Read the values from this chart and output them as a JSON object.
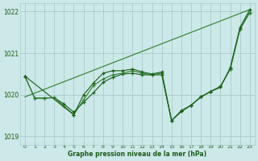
{
  "bg_color": "#cce8e8",
  "grid_color": "#aacccc",
  "line_color_dark": "#1a5c1a",
  "line_color_mid": "#2e7d2e",
  "ylim": [
    1018.8,
    1022.2
  ],
  "yticks": [
    1019,
    1020,
    1021,
    1022
  ],
  "xlim": [
    -0.5,
    23.5
  ],
  "xlabel_label": "Graphe pression niveau de la mer (hPa)",
  "series": [
    {
      "x": [
        0,
        23
      ],
      "y": [
        1019.95,
        1022.05
      ],
      "marker": false,
      "lw": 0.9
    },
    {
      "x": [
        0,
        1,
        2,
        3,
        4,
        5,
        6,
        7,
        8,
        9,
        10,
        11,
        12,
        13,
        14,
        15,
        16,
        17,
        18,
        19,
        20,
        21,
        22,
        23
      ],
      "y": [
        1020.45,
        1019.92,
        1019.92,
        1019.93,
        1019.78,
        1019.58,
        1019.82,
        1020.05,
        1020.3,
        1020.42,
        1020.5,
        1020.52,
        1020.48,
        1020.48,
        1020.48,
        1019.38,
        1019.62,
        1019.75,
        1019.95,
        1020.08,
        1020.2,
        1020.62,
        1021.58,
        1021.98
      ],
      "marker": true,
      "lw": 0.9
    },
    {
      "x": [
        0,
        1,
        2,
        3,
        4,
        5,
        6,
        7,
        8,
        9,
        10,
        11,
        12,
        13,
        14,
        15,
        16,
        17,
        18,
        19,
        20,
        21,
        22,
        23
      ],
      "y": [
        1020.45,
        1019.92,
        1019.92,
        1019.93,
        1019.73,
        1019.52,
        1019.88,
        1020.22,
        1020.38,
        1020.48,
        1020.52,
        1020.58,
        1020.52,
        1020.48,
        1020.52,
        1019.38,
        1019.6,
        1019.75,
        1019.95,
        1020.08,
        1020.2,
        1020.62,
        1021.58,
        1021.98
      ],
      "marker": true,
      "lw": 0.9
    },
    {
      "x": [
        0,
        5,
        6,
        7,
        8,
        9,
        10,
        11,
        12,
        13,
        14,
        15,
        16,
        17,
        18,
        19,
        20,
        21,
        22,
        23
      ],
      "y": [
        1020.45,
        1019.52,
        1020.0,
        1020.28,
        1020.52,
        1020.58,
        1020.58,
        1020.62,
        1020.55,
        1020.5,
        1020.55,
        1019.38,
        1019.6,
        1019.75,
        1019.95,
        1020.08,
        1020.18,
        1020.65,
        1021.62,
        1022.05
      ],
      "marker": true,
      "lw": 0.9
    }
  ]
}
